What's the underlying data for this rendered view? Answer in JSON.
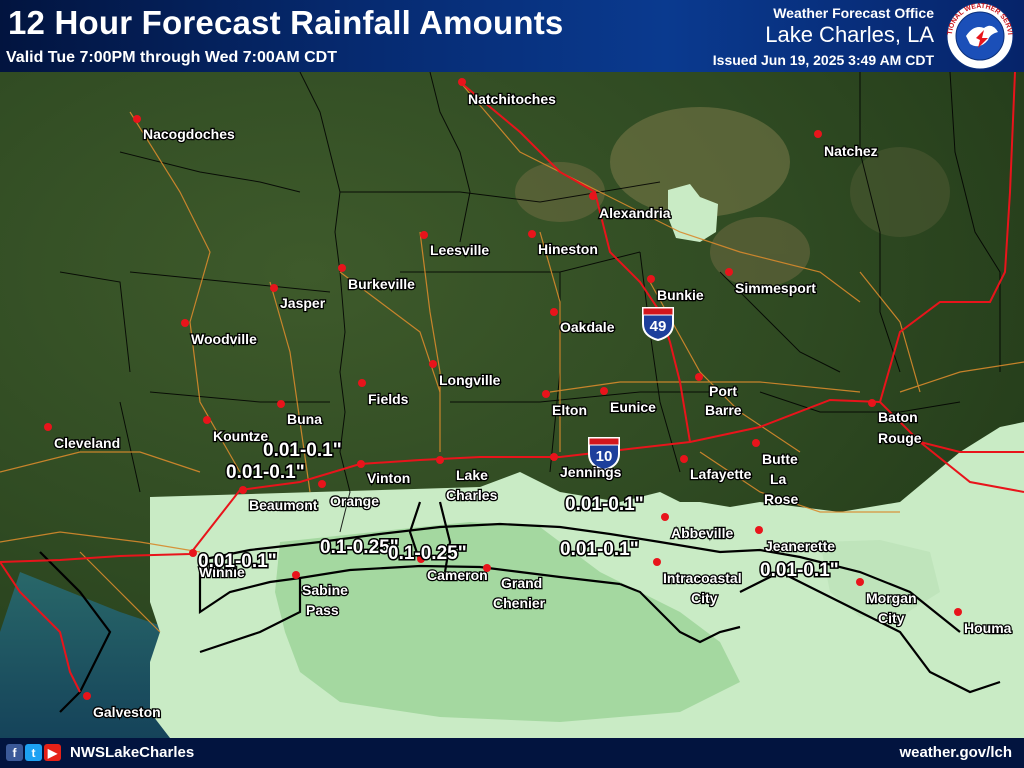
{
  "header": {
    "title": "12 Hour Forecast Rainfall Amounts",
    "valid": "Valid Tue 7:00PM through Wed 7:00AM CDT",
    "office_line1": "Weather Forecast Office",
    "office_line2": "Lake Charles, LA",
    "issued": "Issued Jun 19, 2025 3:49 AM CDT",
    "logo_icon": "nws-logo-icon",
    "logo_text": "NATIONAL WEATHER SERVICE"
  },
  "colors": {
    "header_bg": "#062a70",
    "light_rain": "#c9ebc5",
    "medium_rain": "#a4d8a0",
    "city_dot": "#e8141b",
    "interstate": "#e8141b",
    "highway": "#d88a2c",
    "boundary": "#000000"
  },
  "cities": [
    {
      "name": "Natchitoches"
    },
    {
      "name": "Nacogdoches"
    },
    {
      "name": "Natchez"
    },
    {
      "name": "Alexandria"
    },
    {
      "name": "Leesville"
    },
    {
      "name": "Hineston"
    },
    {
      "name": "Burkeville"
    },
    {
      "name": "Jasper"
    },
    {
      "name": "Simmesport"
    },
    {
      "name": "Bunkie"
    },
    {
      "name": "Woodville"
    },
    {
      "name": "Oakdale"
    },
    {
      "name": "Longville"
    },
    {
      "name": "Fields"
    },
    {
      "name": "Port"
    },
    {
      "name": "Barre"
    },
    {
      "name": "Elton"
    },
    {
      "name": "Eunice"
    },
    {
      "name": "Buna"
    },
    {
      "name": "Baton"
    },
    {
      "name": "Rouge"
    },
    {
      "name": "Cleveland"
    },
    {
      "name": "Kountze"
    },
    {
      "name": "Vinton"
    },
    {
      "name": "Lake"
    },
    {
      "name": "Charles"
    },
    {
      "name": "Jennings"
    },
    {
      "name": "Lafayette"
    },
    {
      "name": "Butte"
    },
    {
      "name": "La"
    },
    {
      "name": "Rose"
    },
    {
      "name": "Beaumont"
    },
    {
      "name": "Orange"
    },
    {
      "name": "Abbeville"
    },
    {
      "name": "Jeanerette"
    },
    {
      "name": "Winnie"
    },
    {
      "name": "Cameron"
    },
    {
      "name": "Grand"
    },
    {
      "name": "Chenier"
    },
    {
      "name": "Sabine"
    },
    {
      "name": "Pass"
    },
    {
      "name": "Intracoastal"
    },
    {
      "name": "City"
    },
    {
      "name": "Morgan"
    },
    {
      "name": "City"
    },
    {
      "name": "Houma"
    },
    {
      "name": "Galveston"
    }
  ],
  "rain_labels": [
    {
      "text": "0.01-0.1\""
    },
    {
      "text": "0.01-0.1\""
    },
    {
      "text": "0.01-0.1\""
    },
    {
      "text": "0.1-0.25\""
    },
    {
      "text": "0.1-0.25\""
    },
    {
      "text": "0.01-0.1\""
    },
    {
      "text": "0.01-0.1\""
    },
    {
      "text": "0.01-0.1\""
    }
  ],
  "shields": [
    {
      "number": "49",
      "icon": "interstate-shield-icon"
    },
    {
      "number": "10",
      "icon": "interstate-shield-icon"
    }
  ],
  "footer": {
    "social_icons": [
      "facebook-icon",
      "twitter-icon",
      "youtube-icon"
    ],
    "handle": "NWSLakeCharles",
    "site": "weather.gov/lch"
  }
}
